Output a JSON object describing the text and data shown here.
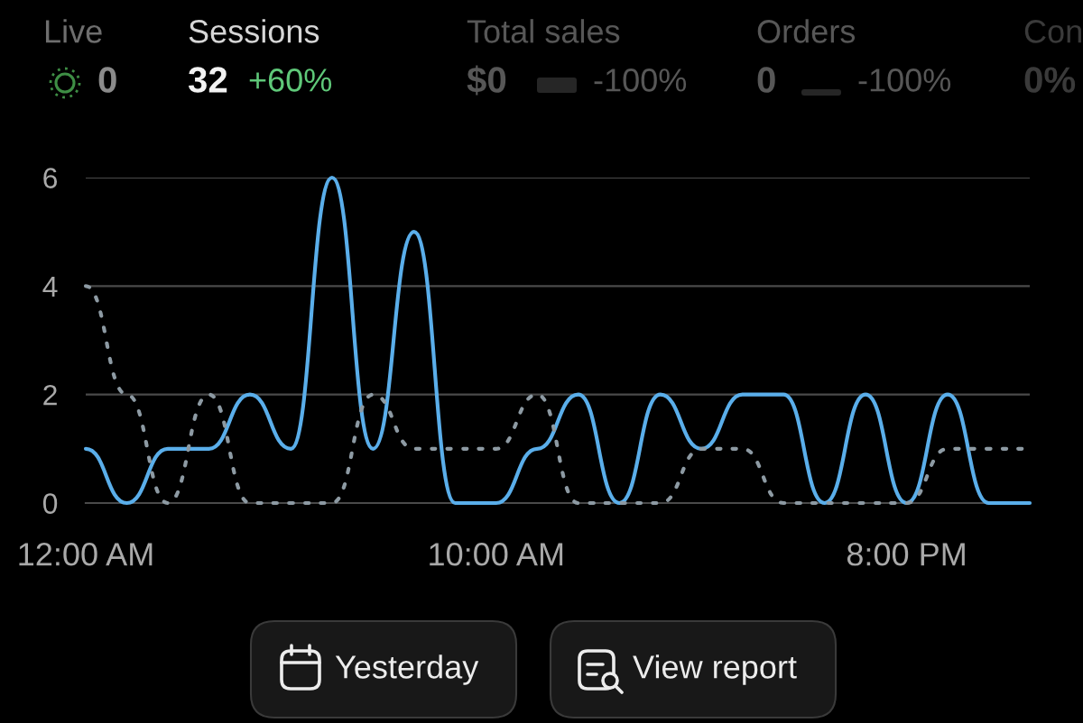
{
  "chart_data": {
    "type": "line",
    "x": [
      0,
      1,
      2,
      3,
      4,
      5,
      6,
      7,
      8,
      9,
      10,
      11,
      12,
      13,
      14,
      15,
      16,
      17,
      18,
      19,
      20,
      21,
      22,
      23
    ],
    "xlim": [
      0,
      23
    ],
    "xticks": [
      {
        "value": 0,
        "label": "12:00 AM"
      },
      {
        "value": 10,
        "label": "10:00 AM"
      },
      {
        "value": 20,
        "label": "8:00 PM"
      }
    ],
    "ylim": [
      0,
      6
    ],
    "yticks": [
      0,
      2,
      4,
      6
    ],
    "grid": "y",
    "series": [
      {
        "color": "#5aaeea",
        "line_style": "solid",
        "values": [
          1,
          0,
          1,
          1,
          2,
          1,
          6,
          1,
          5,
          0,
          0,
          1,
          2,
          0,
          2,
          1,
          2,
          2,
          0,
          2,
          0,
          2,
          0,
          0
        ]
      },
      {
        "color": "#8d9aa3",
        "line_style": "dashed",
        "values": [
          4,
          2,
          0,
          2,
          0,
          0,
          0,
          2,
          1,
          1,
          1,
          2,
          0,
          0,
          0,
          1,
          1,
          0,
          0,
          0,
          0,
          1,
          1,
          1
        ]
      }
    ],
    "annotations": [
      "Live",
      "0",
      "Sessions",
      "32",
      "+60%",
      "Total sales",
      "$0",
      "-100%",
      "Orders",
      "0",
      "-100%",
      "Con",
      "0%",
      "Yesterday",
      "View report"
    ]
  }
}
